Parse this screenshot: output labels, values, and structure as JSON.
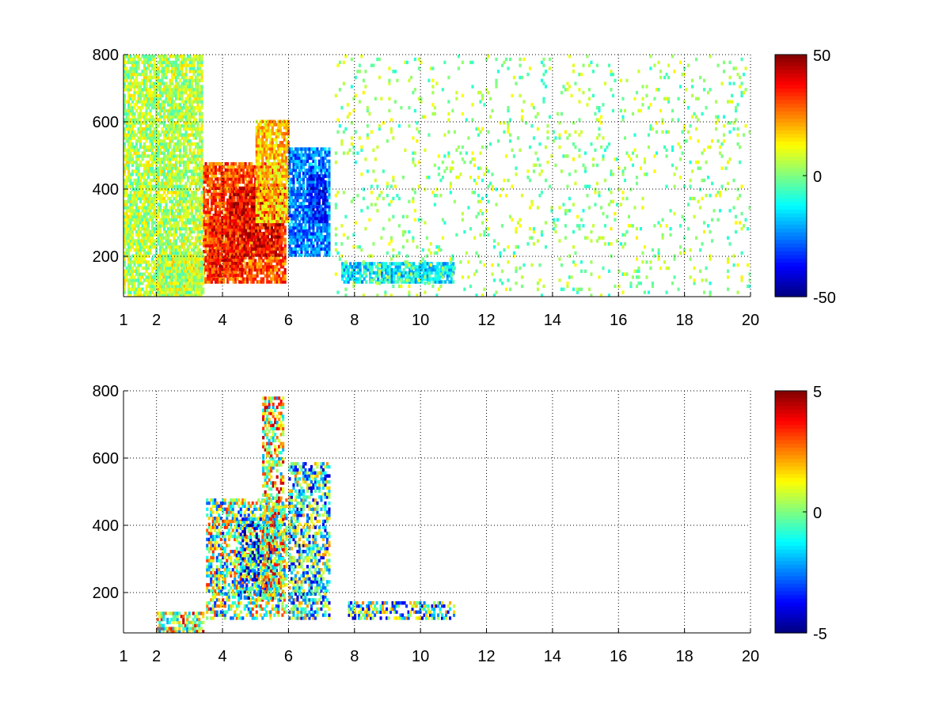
{
  "chart_data": [
    {
      "type": "heatmap",
      "title": "",
      "xlabel": "",
      "ylabel": "",
      "xlim": [
        1,
        20
      ],
      "ylim": [
        80,
        800
      ],
      "x_ticks": [
        1,
        2,
        4,
        6,
        8,
        10,
        12,
        14,
        16,
        18,
        20
      ],
      "x_tick_labels": [
        "1",
        "2",
        "4",
        "6",
        "8",
        "10",
        "12",
        "14",
        "16",
        "18",
        "20"
      ],
      "y_ticks": [
        200,
        400,
        600,
        800
      ],
      "y_tick_labels": [
        "200",
        "400",
        "600",
        "800"
      ],
      "grid": true,
      "colormap": "jet",
      "colorbar": {
        "min": -50,
        "max": 50,
        "ticks": [
          50,
          0,
          -50
        ],
        "tick_labels": [
          "50",
          "0",
          "-50"
        ]
      },
      "regions": [
        {
          "x": [
            3.4,
            5.9
          ],
          "y": [
            120,
            480
          ],
          "value": 30
        },
        {
          "x": [
            4.2,
            5.8
          ],
          "y": [
            200,
            400
          ],
          "value": 40
        },
        {
          "x": [
            3.6,
            4.6
          ],
          "y": [
            140,
            320
          ],
          "value": 35
        },
        {
          "x": [
            5.0,
            6.0
          ],
          "y": [
            300,
            600
          ],
          "value": 18
        },
        {
          "x": [
            2.0,
            3.4
          ],
          "y": [
            80,
            200
          ],
          "value": 12
        },
        {
          "x": [
            6.0,
            7.2
          ],
          "y": [
            200,
            520
          ],
          "value": -25
        },
        {
          "x": [
            6.6,
            7.1
          ],
          "y": [
            300,
            440
          ],
          "value": -35
        },
        {
          "x": [
            7.6,
            11.0
          ],
          "y": [
            120,
            175
          ],
          "value": -15
        },
        {
          "x": [
            1.0,
            3.4
          ],
          "y": [
            80,
            800
          ],
          "value": 5
        },
        {
          "x": [
            7.4,
            20.0
          ],
          "y": [
            80,
            800
          ],
          "value": 2
        }
      ]
    },
    {
      "type": "heatmap",
      "title": "",
      "xlabel": "",
      "ylabel": "",
      "xlim": [
        1,
        20
      ],
      "ylim": [
        80,
        800
      ],
      "x_ticks": [
        1,
        2,
        4,
        6,
        8,
        10,
        12,
        14,
        16,
        18,
        20
      ],
      "x_tick_labels": [
        "1",
        "2",
        "4",
        "6",
        "8",
        "10",
        "12",
        "14",
        "16",
        "18",
        "20"
      ],
      "y_ticks": [
        200,
        400,
        600,
        800
      ],
      "y_tick_labels": [
        "200",
        "400",
        "600",
        "800"
      ],
      "grid": true,
      "colormap": "jet",
      "colorbar": {
        "min": -5,
        "max": 5,
        "ticks": [
          5,
          0,
          -5
        ],
        "tick_labels": [
          "5",
          "0",
          "-5"
        ]
      },
      "regions": [
        {
          "x": [
            3.5,
            5.9
          ],
          "y": [
            120,
            480
          ],
          "value": 0
        },
        {
          "x": [
            4.4,
            5.6
          ],
          "y": [
            180,
            420
          ],
          "value": -2
        },
        {
          "x": [
            5.2,
            5.8
          ],
          "y": [
            180,
            780
          ],
          "value": 1
        },
        {
          "x": [
            6.0,
            7.2
          ],
          "y": [
            120,
            580
          ],
          "value": -1
        },
        {
          "x": [
            7.8,
            11.0
          ],
          "y": [
            120,
            170
          ],
          "value": -1
        },
        {
          "x": [
            2.0,
            3.4
          ],
          "y": [
            80,
            140
          ],
          "value": 1
        }
      ]
    }
  ]
}
